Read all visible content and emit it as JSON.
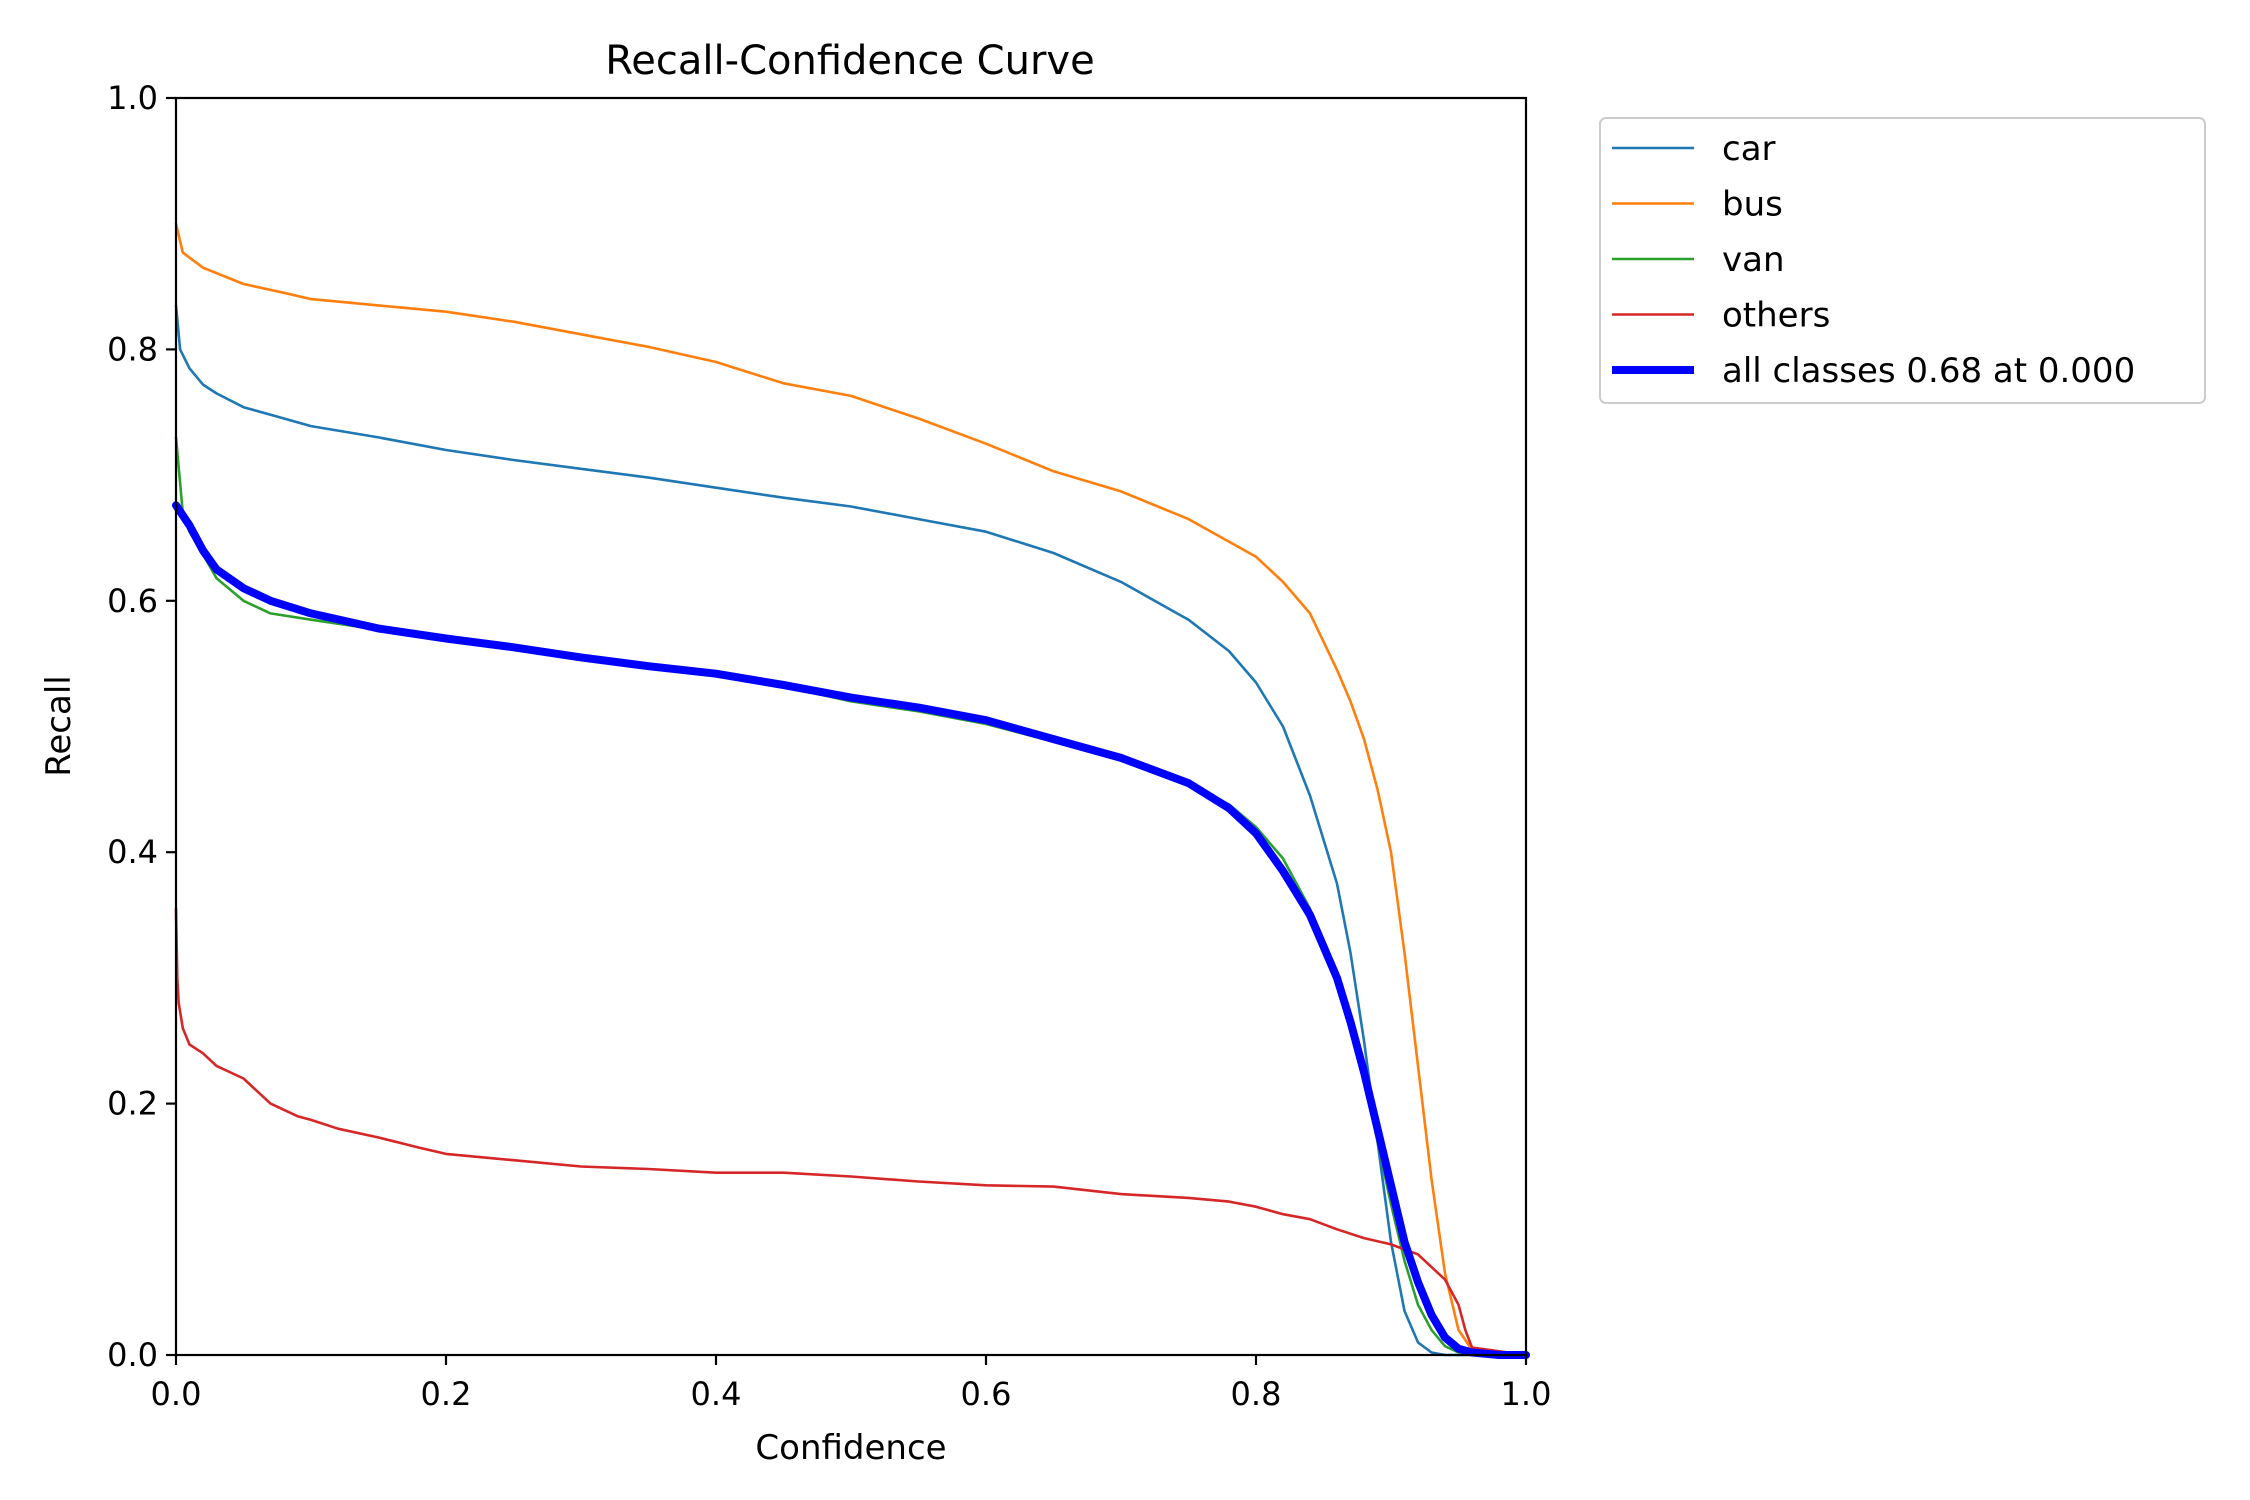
{
  "chart_data": {
    "type": "line",
    "title": "Recall-Confidence Curve",
    "xlabel": "Confidence",
    "ylabel": "Recall",
    "xlim": [
      0.0,
      1.0
    ],
    "ylim": [
      0.0,
      1.0
    ],
    "xticks": [
      "0.0",
      "0.2",
      "0.4",
      "0.6",
      "0.8",
      "1.0"
    ],
    "yticks": [
      "0.0",
      "0.2",
      "0.4",
      "0.6",
      "0.8",
      "1.0"
    ],
    "grid": false,
    "legend_position": "outside-top-right",
    "series": [
      {
        "name": "car",
        "color": "#1f77b4",
        "width": "thin",
        "x": [
          0.0,
          0.003,
          0.01,
          0.02,
          0.03,
          0.05,
          0.08,
          0.1,
          0.15,
          0.2,
          0.25,
          0.3,
          0.35,
          0.4,
          0.45,
          0.5,
          0.55,
          0.6,
          0.65,
          0.7,
          0.75,
          0.78,
          0.8,
          0.82,
          0.84,
          0.86,
          0.87,
          0.88,
          0.89,
          0.9,
          0.91,
          0.92,
          0.93,
          0.94,
          1.0
        ],
        "y": [
          0.835,
          0.8,
          0.785,
          0.772,
          0.765,
          0.754,
          0.745,
          0.739,
          0.73,
          0.72,
          0.712,
          0.705,
          0.698,
          0.69,
          0.682,
          0.675,
          0.665,
          0.655,
          0.638,
          0.615,
          0.585,
          0.56,
          0.535,
          0.5,
          0.445,
          0.375,
          0.32,
          0.25,
          0.17,
          0.09,
          0.035,
          0.01,
          0.002,
          0.0,
          0.0
        ]
      },
      {
        "name": "bus",
        "color": "#ff7f0e",
        "width": "thin",
        "x": [
          0.0,
          0.005,
          0.02,
          0.05,
          0.08,
          0.1,
          0.15,
          0.2,
          0.25,
          0.3,
          0.35,
          0.4,
          0.45,
          0.5,
          0.55,
          0.6,
          0.65,
          0.7,
          0.75,
          0.8,
          0.82,
          0.84,
          0.86,
          0.87,
          0.88,
          0.89,
          0.9,
          0.91,
          0.92,
          0.93,
          0.94,
          0.95,
          0.96,
          1.0
        ],
        "y": [
          0.9,
          0.877,
          0.865,
          0.852,
          0.845,
          0.84,
          0.835,
          0.83,
          0.822,
          0.812,
          0.802,
          0.79,
          0.773,
          0.763,
          0.745,
          0.725,
          0.703,
          0.687,
          0.665,
          0.635,
          0.615,
          0.59,
          0.545,
          0.52,
          0.49,
          0.45,
          0.4,
          0.32,
          0.23,
          0.14,
          0.065,
          0.02,
          0.004,
          0.0
        ]
      },
      {
        "name": "van",
        "color": "#2ca02c",
        "width": "thin",
        "x": [
          0.0,
          0.005,
          0.01,
          0.02,
          0.03,
          0.05,
          0.07,
          0.1,
          0.15,
          0.2,
          0.25,
          0.3,
          0.35,
          0.4,
          0.45,
          0.5,
          0.55,
          0.6,
          0.65,
          0.7,
          0.75,
          0.78,
          0.8,
          0.82,
          0.84,
          0.86,
          0.87,
          0.88,
          0.89,
          0.9,
          0.91,
          0.92,
          0.93,
          0.94,
          0.95,
          1.0
        ],
        "y": [
          0.73,
          0.67,
          0.655,
          0.637,
          0.618,
          0.6,
          0.59,
          0.585,
          0.577,
          0.568,
          0.563,
          0.555,
          0.548,
          0.54,
          0.532,
          0.52,
          0.512,
          0.502,
          0.488,
          0.473,
          0.455,
          0.438,
          0.42,
          0.395,
          0.355,
          0.3,
          0.26,
          0.22,
          0.17,
          0.12,
          0.075,
          0.04,
          0.02,
          0.007,
          0.002,
          0.0
        ]
      },
      {
        "name": "others",
        "color": "#d62728",
        "width": "thin",
        "x": [
          0.0,
          0.001,
          0.002,
          0.005,
          0.01,
          0.02,
          0.03,
          0.05,
          0.07,
          0.09,
          0.1,
          0.12,
          0.15,
          0.18,
          0.2,
          0.25,
          0.3,
          0.35,
          0.4,
          0.45,
          0.5,
          0.55,
          0.6,
          0.65,
          0.7,
          0.75,
          0.78,
          0.8,
          0.82,
          0.84,
          0.86,
          0.88,
          0.9,
          0.92,
          0.94,
          0.95,
          0.955,
          0.96,
          1.0
        ],
        "y": [
          0.355,
          0.3,
          0.28,
          0.26,
          0.247,
          0.24,
          0.23,
          0.22,
          0.2,
          0.19,
          0.187,
          0.18,
          0.173,
          0.165,
          0.16,
          0.155,
          0.15,
          0.148,
          0.145,
          0.145,
          0.142,
          0.138,
          0.135,
          0.134,
          0.128,
          0.125,
          0.122,
          0.118,
          0.112,
          0.108,
          0.1,
          0.093,
          0.088,
          0.08,
          0.06,
          0.04,
          0.02,
          0.006,
          0.0
        ]
      },
      {
        "name": "all classes 0.68 at 0.000",
        "color": "#0000ff",
        "width": "thick",
        "x": [
          0.0,
          0.01,
          0.02,
          0.03,
          0.05,
          0.07,
          0.1,
          0.15,
          0.2,
          0.25,
          0.3,
          0.35,
          0.4,
          0.45,
          0.5,
          0.55,
          0.6,
          0.65,
          0.7,
          0.75,
          0.78,
          0.8,
          0.82,
          0.84,
          0.86,
          0.87,
          0.88,
          0.89,
          0.9,
          0.91,
          0.92,
          0.93,
          0.94,
          0.95,
          0.96,
          0.98,
          1.0
        ],
        "y": [
          0.676,
          0.66,
          0.64,
          0.625,
          0.61,
          0.6,
          0.59,
          0.578,
          0.57,
          0.563,
          0.555,
          0.548,
          0.542,
          0.533,
          0.523,
          0.515,
          0.505,
          0.49,
          0.475,
          0.455,
          0.435,
          0.415,
          0.385,
          0.35,
          0.3,
          0.265,
          0.225,
          0.18,
          0.135,
          0.09,
          0.058,
          0.032,
          0.014,
          0.005,
          0.002,
          0.0,
          0.0
        ]
      }
    ]
  }
}
